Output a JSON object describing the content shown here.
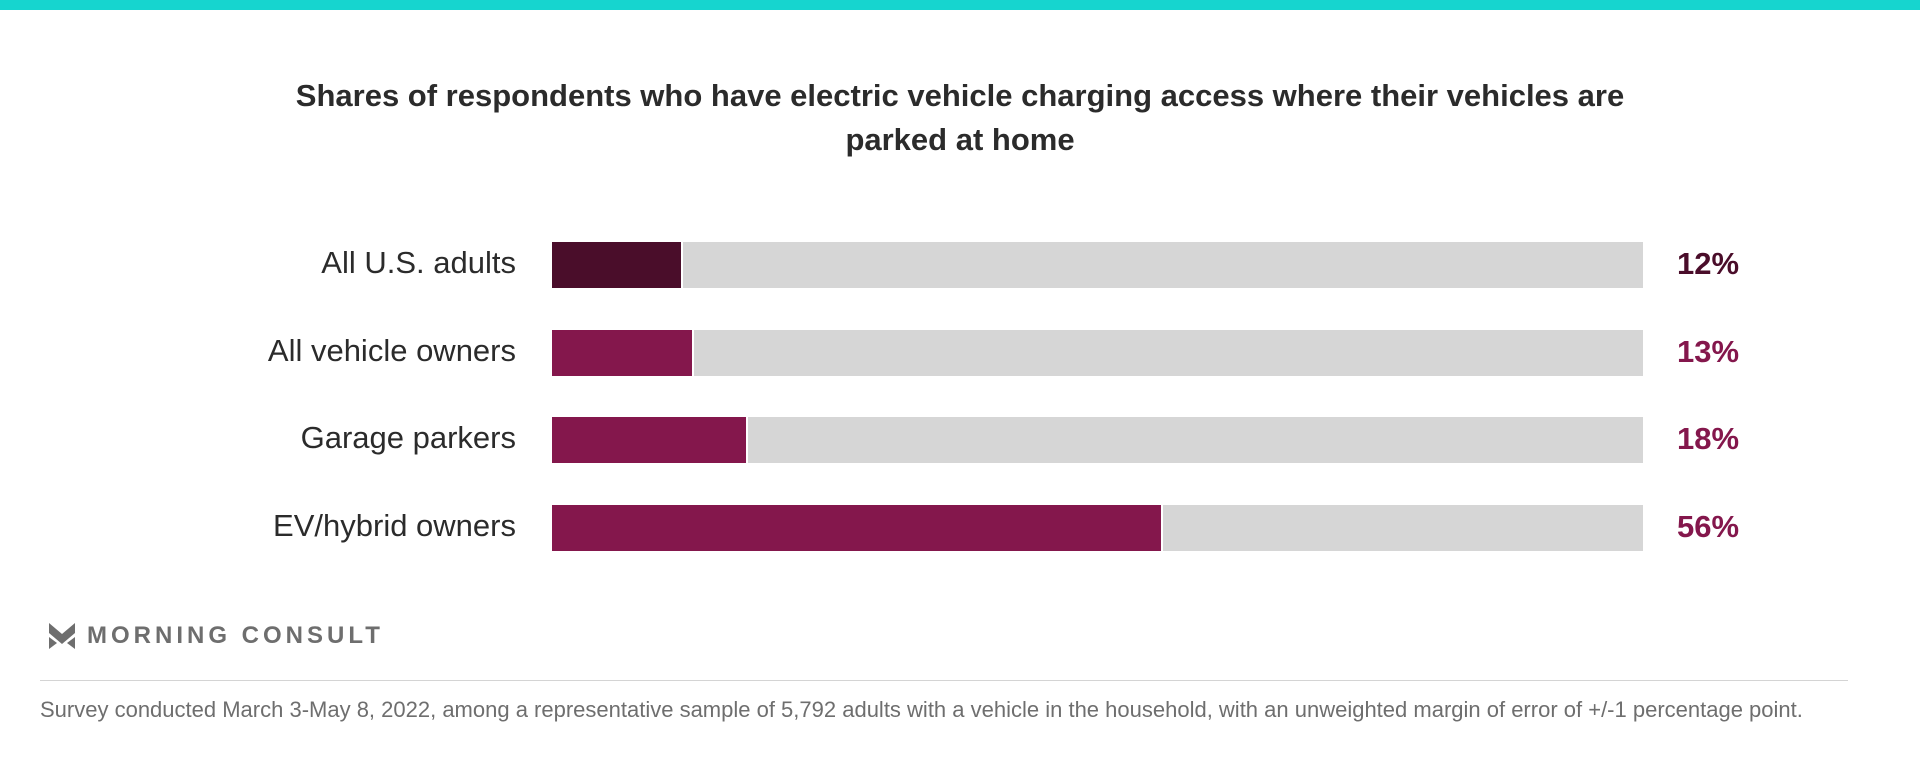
{
  "chart_data": {
    "type": "bar",
    "orientation": "horizontal",
    "title": "Shares of respondents who have electric vehicle charging access where their vehicles are parked at home",
    "categories": [
      "All U.S. adults",
      "All vehicle owners",
      "Garage parkers",
      "EV/hybrid owners"
    ],
    "values": [
      12,
      13,
      18,
      56
    ],
    "value_labels": [
      "12%",
      "13%",
      "18%",
      "56%"
    ],
    "colors": [
      "#4a0d2a",
      "#84174c",
      "#84174c",
      "#84174c"
    ],
    "track_color": "#d6d6d6",
    "xlim": [
      0,
      100
    ],
    "xlabel": "",
    "ylabel": ""
  },
  "brand": {
    "name": "MORNING CONSULT",
    "accent": "#16d5cf"
  },
  "footnote": "Survey conducted March 3-May 8, 2022, among a representative sample of 5,792 adults with a vehicle in the household, with an unweighted margin of error of +/-1 percentage point."
}
